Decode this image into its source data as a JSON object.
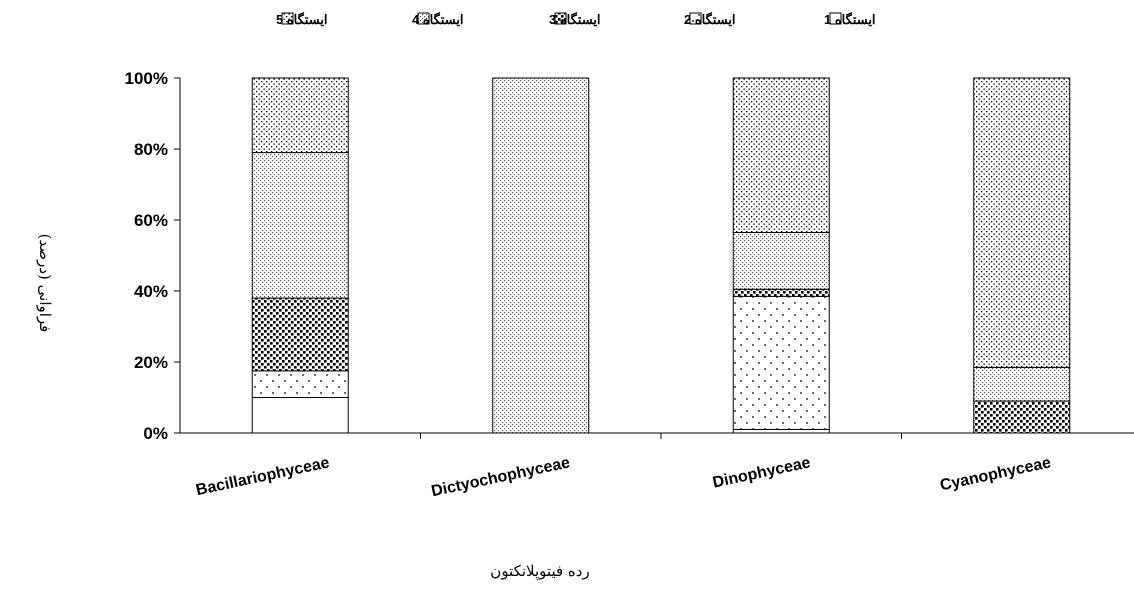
{
  "chart_data": {
    "type": "bar",
    "stacked": true,
    "percent_stacked": true,
    "categories": [
      "Bacillariophyceae",
      "Dictyochophyceae",
      "Dinophyceae",
      "Cyanophyceae"
    ],
    "series": [
      {
        "name": "ایستگاه 1",
        "pattern": "blank",
        "values": [
          10,
          0,
          1,
          0
        ]
      },
      {
        "name": "ایستگاه 2",
        "pattern": "sparse-dots",
        "values": [
          7.5,
          0,
          37.5,
          0
        ]
      },
      {
        "name": "ایستگاه 3",
        "pattern": "dense-squares",
        "values": [
          20.5,
          0,
          2,
          9
        ]
      },
      {
        "name": "ایستگاه 4",
        "pattern": "fine-dots",
        "values": [
          41,
          100,
          16,
          9.5
        ]
      },
      {
        "name": "ایستگاه 5",
        "pattern": "diagonal-dots",
        "values": [
          21,
          0,
          43.5,
          81.5
        ]
      }
    ],
    "xlabel": "رده فیتوپلانکتون",
    "ylabel": "فراوانی (درصد)",
    "ylim": [
      0,
      100
    ],
    "yticks": [
      "0%",
      "20%",
      "40%",
      "60%",
      "80%",
      "100%"
    ],
    "legend_position": "top",
    "grid": false
  }
}
